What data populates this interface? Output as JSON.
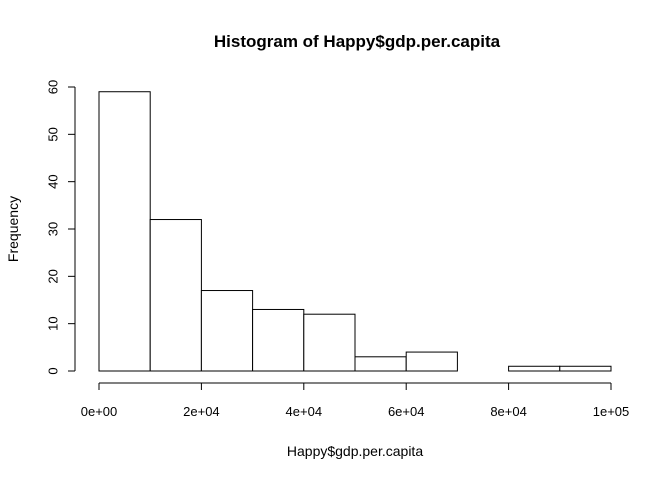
{
  "chart_data": {
    "type": "bar",
    "title": "Histogram of Happy$gdp.per.capita",
    "xlabel": "Happy$gdp.per.capita",
    "ylabel": "Frequency",
    "bins": [
      {
        "start": 0,
        "end": 10000,
        "count": 59
      },
      {
        "start": 10000,
        "end": 20000,
        "count": 32
      },
      {
        "start": 20000,
        "end": 30000,
        "count": 17
      },
      {
        "start": 30000,
        "end": 40000,
        "count": 13
      },
      {
        "start": 40000,
        "end": 50000,
        "count": 12
      },
      {
        "start": 50000,
        "end": 60000,
        "count": 3
      },
      {
        "start": 60000,
        "end": 70000,
        "count": 4
      },
      {
        "start": 70000,
        "end": 80000,
        "count": 0
      },
      {
        "start": 80000,
        "end": 90000,
        "count": 1
      },
      {
        "start": 90000,
        "end": 100000,
        "count": 1
      }
    ],
    "xlim": [
      0,
      100000
    ],
    "ylim": [
      0,
      60
    ],
    "xticks": [
      0,
      20000,
      40000,
      60000,
      80000,
      100000
    ],
    "xtick_labels": [
      "0e+00",
      "2e+04",
      "4e+04",
      "6e+04",
      "8e+04",
      "1e+05"
    ],
    "yticks": [
      0,
      10,
      20,
      30,
      40,
      50,
      60
    ],
    "ytick_labels": [
      "0",
      "10",
      "20",
      "30",
      "40",
      "50",
      "60"
    ],
    "grid": false,
    "legend": "none",
    "bar_fill": "#ffffff",
    "bar_stroke": "#000000"
  }
}
